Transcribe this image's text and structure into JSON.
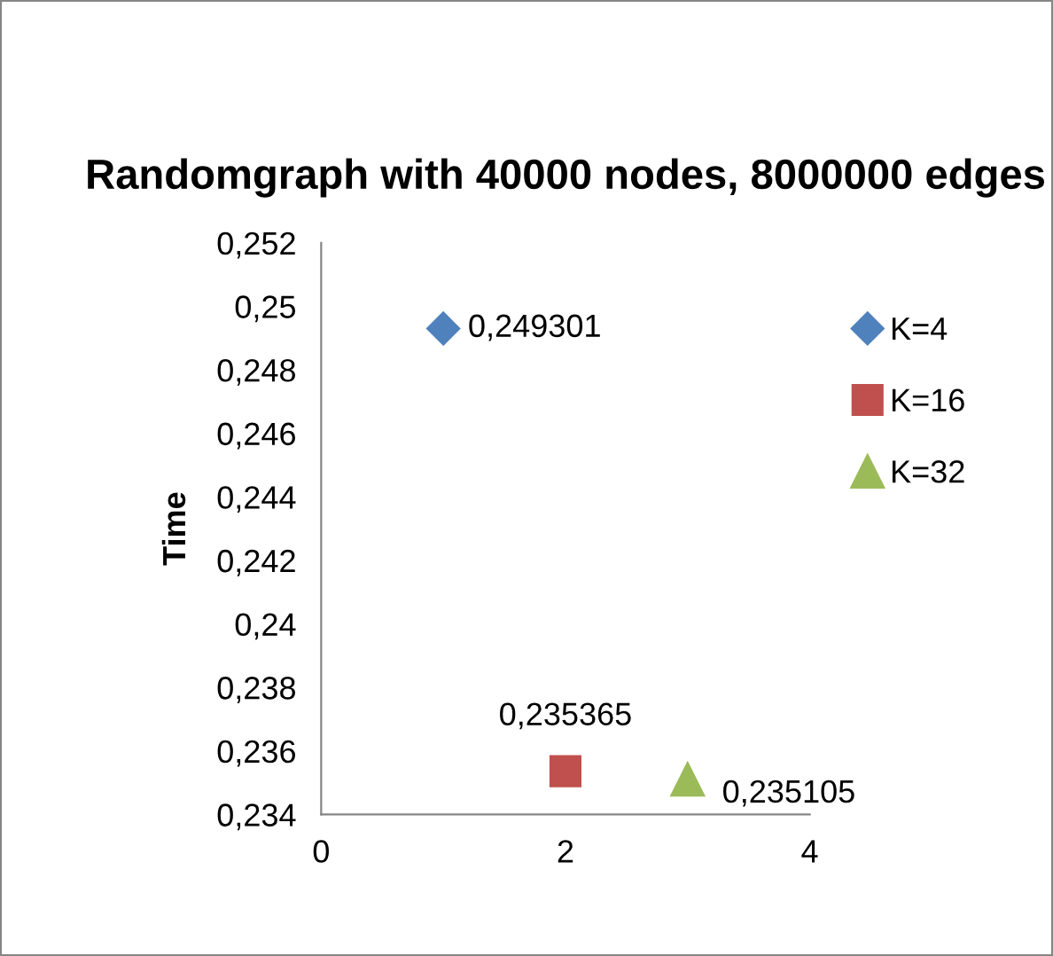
{
  "chart_data": {
    "type": "scatter",
    "title": "Randomgraph with 40000 nodes, 8000000 edges",
    "ylabel": "Time",
    "series": [
      {
        "name": "K=4",
        "color": "#4f81bd",
        "marker": "diamond",
        "x": [
          1
        ],
        "values": [
          0.249301
        ],
        "value_labels": [
          "0,249301"
        ]
      },
      {
        "name": "K=16",
        "color": "#c0504d",
        "marker": "square",
        "x": [
          2
        ],
        "values": [
          0.235365
        ],
        "value_labels": [
          "0,235365"
        ]
      },
      {
        "name": "K=32",
        "color": "#9bbb59",
        "marker": "triangle",
        "x": [
          3
        ],
        "values": [
          0.235105
        ],
        "value_labels": [
          "0,235105"
        ]
      }
    ],
    "xlim": [
      0,
      4
    ],
    "xticks": [
      0,
      2,
      4
    ],
    "ylim": [
      0.234,
      0.252
    ],
    "yticks": [
      {
        "value": 0.234,
        "label": "0,234"
      },
      {
        "value": 0.236,
        "label": "0,236"
      },
      {
        "value": 0.238,
        "label": "0,238"
      },
      {
        "value": 0.24,
        "label": "0,24"
      },
      {
        "value": 0.242,
        "label": "0,242"
      },
      {
        "value": 0.244,
        "label": "0,244"
      },
      {
        "value": 0.246,
        "label": "0,246"
      },
      {
        "value": 0.248,
        "label": "0,248"
      },
      {
        "value": 0.25,
        "label": "0,25"
      },
      {
        "value": 0.252,
        "label": "0,252"
      }
    ],
    "legend": "right",
    "grid": false
  }
}
